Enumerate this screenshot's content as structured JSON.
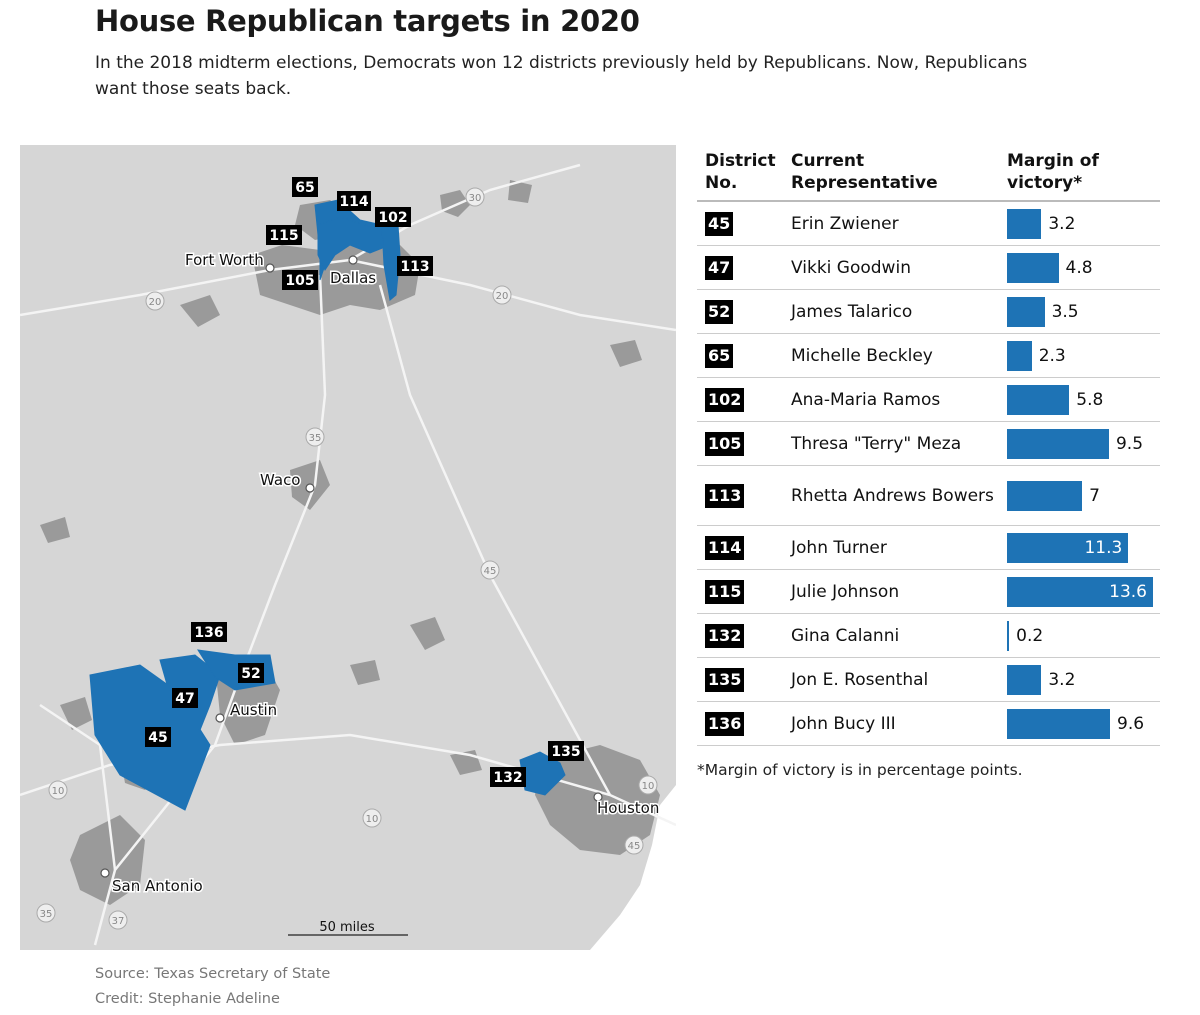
{
  "title": "House Republican targets in 2020",
  "subtitle": "In the 2018 midterm elections, Democrats won 12 districts previously held by Republicans. Now, Republicans want those seats back.",
  "colors": {
    "district": "#1e73b5",
    "urban": "#9a9a9a",
    "land": "#d6d6d6",
    "road": "#f4f4f4",
    "badge": "#000000"
  },
  "map": {
    "cities": [
      "Fort Worth",
      "Dallas",
      "Waco",
      "Austin",
      "San Antonio",
      "Houston"
    ],
    "highways": [
      "30",
      "20",
      "20",
      "35",
      "45",
      "10",
      "10",
      "10",
      "45",
      "35",
      "37"
    ],
    "district_labels": [
      "65",
      "114",
      "102",
      "115",
      "105",
      "113",
      "136",
      "52",
      "47",
      "45",
      "135",
      "132"
    ],
    "scale_label": "50 miles"
  },
  "table": {
    "headers": {
      "district": "District\nNo.",
      "rep": "Current\nRepresentative",
      "margin": "Margin of\nvictory*"
    },
    "rows": [
      {
        "district": "45",
        "rep": "Erin Zwiener",
        "margin": 3.2,
        "margin_label": "3.2"
      },
      {
        "district": "47",
        "rep": "Vikki Goodwin",
        "margin": 4.8,
        "margin_label": "4.8"
      },
      {
        "district": "52",
        "rep": "James Talarico",
        "margin": 3.5,
        "margin_label": "3.5"
      },
      {
        "district": "65",
        "rep": "Michelle Beckley",
        "margin": 2.3,
        "margin_label": "2.3"
      },
      {
        "district": "102",
        "rep": "Ana-Maria Ramos",
        "margin": 5.8,
        "margin_label": "5.8"
      },
      {
        "district": "105",
        "rep": "Thresa \"Terry\" Meza",
        "margin": 9.5,
        "margin_label": "9.5"
      },
      {
        "district": "113",
        "rep": "Rhetta Andrews Bowers",
        "margin": 7,
        "margin_label": "7"
      },
      {
        "district": "114",
        "rep": "John Turner",
        "margin": 11.3,
        "margin_label": "11.3"
      },
      {
        "district": "115",
        "rep": "Julie Johnson",
        "margin": 13.6,
        "margin_label": "13.6"
      },
      {
        "district": "132",
        "rep": "Gina Calanni",
        "margin": 0.2,
        "margin_label": "0.2"
      },
      {
        "district": "135",
        "rep": "Jon E. Rosenthal",
        "margin": 3.2,
        "margin_label": "3.2"
      },
      {
        "district": "136",
        "rep": "John Bucy III",
        "margin": 9.6,
        "margin_label": "9.6"
      }
    ]
  },
  "footnote": "*Margin of victory is in percentage points.",
  "source": "Source: Texas Secretary of State",
  "credit": "Credit: Stephanie Adeline"
}
